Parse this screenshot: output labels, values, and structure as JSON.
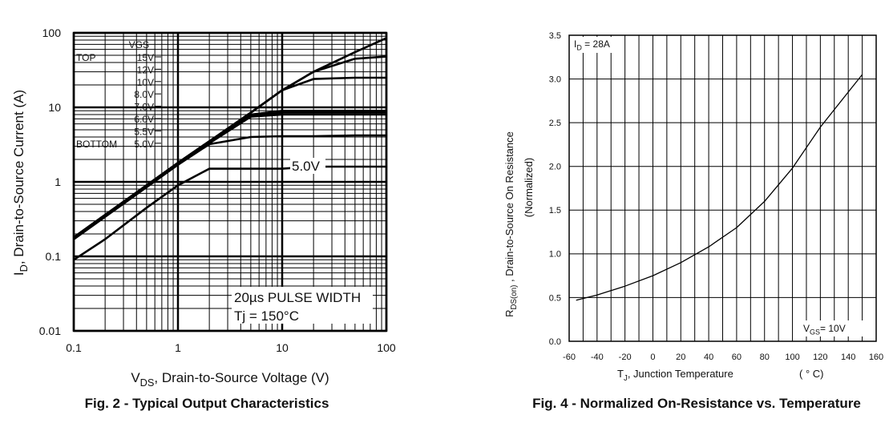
{
  "chart_data": [
    {
      "type": "line",
      "title": "Fig. 2 - Typical Output Characteristics",
      "xlabel": [
        "V",
        "DS",
        ", Drain-to-Source Voltage (V)"
      ],
      "ylabel": [
        "I",
        "D",
        ", Drain-to-Source Current (A)"
      ],
      "xscale": "log",
      "yscale": "log",
      "xlim": [
        0.1,
        100
      ],
      "ylim": [
        0.01,
        100
      ],
      "xticks": [
        0.1,
        1,
        10,
        100
      ],
      "yticks": [
        0.01,
        0.1,
        1,
        10,
        100
      ],
      "grid": true,
      "legend_title": "VGS",
      "legend_top": "TOP",
      "legend_bottom": "BOTTOM",
      "annotations": [
        "5.0V",
        "20µs PULSE WIDTH",
        "Tj = 150°C"
      ],
      "x": [
        0.1,
        0.2,
        0.5,
        1,
        2,
        5,
        10,
        20,
        50,
        100
      ],
      "series": [
        {
          "name": "15V",
          "color": "#000000",
          "values": [
            0.18,
            0.36,
            0.9,
            1.8,
            3.5,
            8.5,
            17,
            30,
            55,
            85
          ]
        },
        {
          "name": "12V",
          "color": "#000000",
          "values": [
            0.18,
            0.36,
            0.9,
            1.8,
            3.5,
            8.5,
            17,
            30,
            45,
            48
          ]
        },
        {
          "name": "10V",
          "color": "#000000",
          "values": [
            0.18,
            0.36,
            0.9,
            1.8,
            3.5,
            8.5,
            17,
            24,
            25,
            25
          ]
        },
        {
          "name": "8.0V",
          "color": "#000000",
          "values": [
            0.18,
            0.36,
            0.9,
            1.8,
            3.5,
            8,
            9,
            9,
            9,
            9
          ]
        },
        {
          "name": "7.0V",
          "color": "#000000",
          "values": [
            0.18,
            0.36,
            0.9,
            1.8,
            3.5,
            7.8,
            8.5,
            8.5,
            8.5,
            8.5
          ]
        },
        {
          "name": "6.0V",
          "color": "#000000",
          "values": [
            0.17,
            0.34,
            0.85,
            1.7,
            3.3,
            7.5,
            8,
            8,
            8,
            8
          ]
        },
        {
          "name": "5.5V",
          "color": "#000000",
          "values": [
            0.17,
            0.34,
            0.85,
            1.7,
            3.2,
            4,
            4.1,
            4.1,
            4.2,
            4.2
          ]
        },
        {
          "name": "5.0V",
          "color": "#000000",
          "values": [
            0.09,
            0.17,
            0.45,
            0.9,
            1.5,
            1.5,
            1.5,
            1.6,
            1.6,
            1.6
          ]
        }
      ]
    },
    {
      "type": "line",
      "title": "Fig. 4 - Normalized On-Resistance vs. Temperature",
      "xlabel": [
        "T",
        "J",
        ", Junction Temperature"
      ],
      "xunit": "( ° C)",
      "ylabel": [
        "R",
        "DS(on)",
        "  , Drain-to-Source On Resistance"
      ],
      "ylabel2": "(Normalized)",
      "xlim": [
        -60,
        160
      ],
      "ylim": [
        0,
        3.5
      ],
      "xticks": [
        -60,
        -40,
        -20,
        0,
        20,
        40,
        60,
        80,
        100,
        120,
        140,
        160
      ],
      "yticks": [
        {
          "value": 0,
          "label": "0.0"
        },
        0.5,
        {
          "value": 1,
          "label": "1.0"
        },
        1.5,
        {
          "value": 2,
          "label": "2.0"
        },
        2.5,
        {
          "value": 3,
          "label": "3.0"
        },
        3.5
      ],
      "grid": true,
      "annotations": [
        [
          "I",
          "D",
          " =  28A"
        ],
        [
          "V",
          "GS",
          "= 10V"
        ]
      ],
      "x": [
        -55,
        -40,
        -20,
        0,
        20,
        40,
        60,
        80,
        100,
        120,
        140,
        150
      ],
      "series": [
        {
          "color": "#000000",
          "values": [
            0.47,
            0.53,
            0.63,
            0.75,
            0.9,
            1.08,
            1.3,
            1.6,
            1.98,
            2.45,
            2.85,
            3.05
          ]
        }
      ]
    }
  ]
}
